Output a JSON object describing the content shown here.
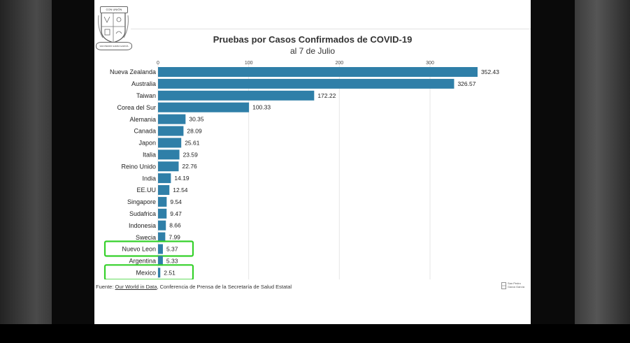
{
  "chart_data": {
    "type": "bar",
    "orientation": "horizontal",
    "title": "Pruebas por Casos Confirmados de COVID-19",
    "subtitle": "al 7 de Julio",
    "xlabel": "",
    "ylabel": "",
    "xlim": [
      0,
      352.43
    ],
    "xticks": [
      0,
      100,
      200,
      300
    ],
    "grid": true,
    "bar_color": "#2f7fa8",
    "highlight_color": "#35d12a",
    "categories": [
      "Nueva Zealanda",
      "Australia",
      "Taiwan",
      "Corea del Sur",
      "Alemania",
      "Canada",
      "Japon",
      "Italia",
      "Reino Unido",
      "India",
      "EE.UU",
      "Singapore",
      "Sudafrica",
      "Indonesia",
      "Swecia",
      "Nuevo Leon",
      "Argentina",
      "Mexico"
    ],
    "values": [
      352.43,
      326.57,
      172.22,
      100.33,
      30.35,
      28.09,
      25.61,
      23.59,
      22.76,
      14.19,
      12.54,
      9.54,
      9.47,
      8.66,
      7.99,
      5.37,
      5.33,
      2.51
    ],
    "value_labels": [
      "352.43",
      "326.57",
      "172.22",
      "100.33",
      "30.35",
      "28.09",
      "25.61",
      "23.59",
      "22.76",
      "14.19",
      "12.54",
      "9.54",
      "9.47",
      "8.66",
      "7.99",
      "5.37",
      "5.33",
      "2.51"
    ],
    "highlighted": [
      "Nuevo Leon",
      "Mexico"
    ]
  },
  "source": {
    "prefix": "Fuente: ",
    "link_text": "Our World in Data",
    "rest": ", Conferencia de Prensa de la Secretaría de Salud Estatal"
  },
  "brand": {
    "line1": "San Pedro",
    "line2": "Garza García"
  },
  "seal": {
    "top_text": "CON UNIÓN",
    "bottom_text": "SAN PEDRO GARZA GARCÍA"
  },
  "colors": {
    "axis_text": "#444444",
    "grid": "#e6e6e6"
  }
}
